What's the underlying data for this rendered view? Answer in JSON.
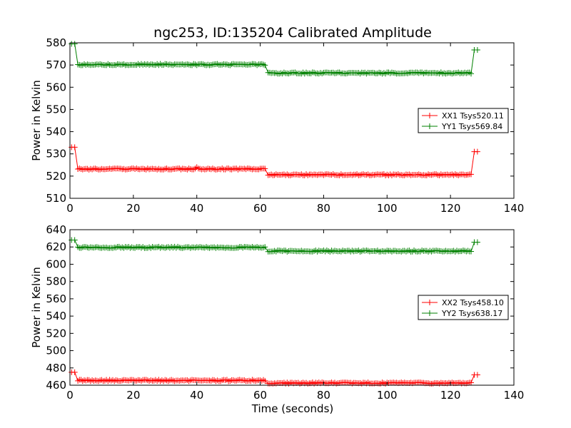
{
  "figure": {
    "title": "ngc253, ID:135204 Calibrated Amplitude",
    "xlabel": "Time (seconds)"
  },
  "chart_data": [
    {
      "type": "line",
      "ylabel": "Power in Kelvin",
      "xlim": [
        0,
        140
      ],
      "ylim": [
        510,
        580
      ],
      "xticks": [
        "0",
        "20",
        "40",
        "60",
        "80",
        "100",
        "120",
        "140"
      ],
      "yticks": [
        "510",
        "520",
        "530",
        "540",
        "550",
        "560",
        "570",
        "580"
      ],
      "legend_position": "center-right",
      "segments_x": [
        [
          0.5,
          1.5
        ],
        [
          2.5,
          61.5
        ],
        [
          62.5,
          126.5
        ],
        [
          127.5,
          128.5
        ]
      ],
      "series": [
        {
          "name": "XX1 Tsys520.11",
          "color": "#ff0000",
          "marker": "+",
          "segment_levels": [
            533,
            523.2,
            520.6,
            531
          ],
          "spike_at": 40,
          "spike_value": 524
        },
        {
          "name": "YY1 Tsys569.84",
          "color": "#008000",
          "marker": "+",
          "segment_levels": [
            579.5,
            570.2,
            566.4,
            576.8
          ]
        }
      ]
    },
    {
      "type": "line",
      "ylabel": "Power in Kelvin",
      "xlabel": "Time (seconds)",
      "xlim": [
        0,
        140
      ],
      "ylim": [
        460,
        640
      ],
      "xticks": [
        "0",
        "20",
        "40",
        "60",
        "80",
        "100",
        "120",
        "140"
      ],
      "yticks": [
        "460",
        "480",
        "500",
        "520",
        "540",
        "560",
        "580",
        "600",
        "620",
        "640"
      ],
      "legend_position": "center-right",
      "segments_x": [
        [
          0.5,
          1.5
        ],
        [
          2.5,
          61.5
        ],
        [
          62.5,
          126.5
        ],
        [
          127.5,
          128.5
        ]
      ],
      "series": [
        {
          "name": "XX2 Tsys458.10",
          "color": "#ff0000",
          "marker": "+",
          "segment_levels": [
            475,
            465.5,
            462.5,
            472
          ]
        },
        {
          "name": "YY2 Tsys638.17",
          "color": "#008000",
          "marker": "+",
          "segment_levels": [
            628,
            619.5,
            615.3,
            625.5
          ]
        }
      ]
    }
  ]
}
